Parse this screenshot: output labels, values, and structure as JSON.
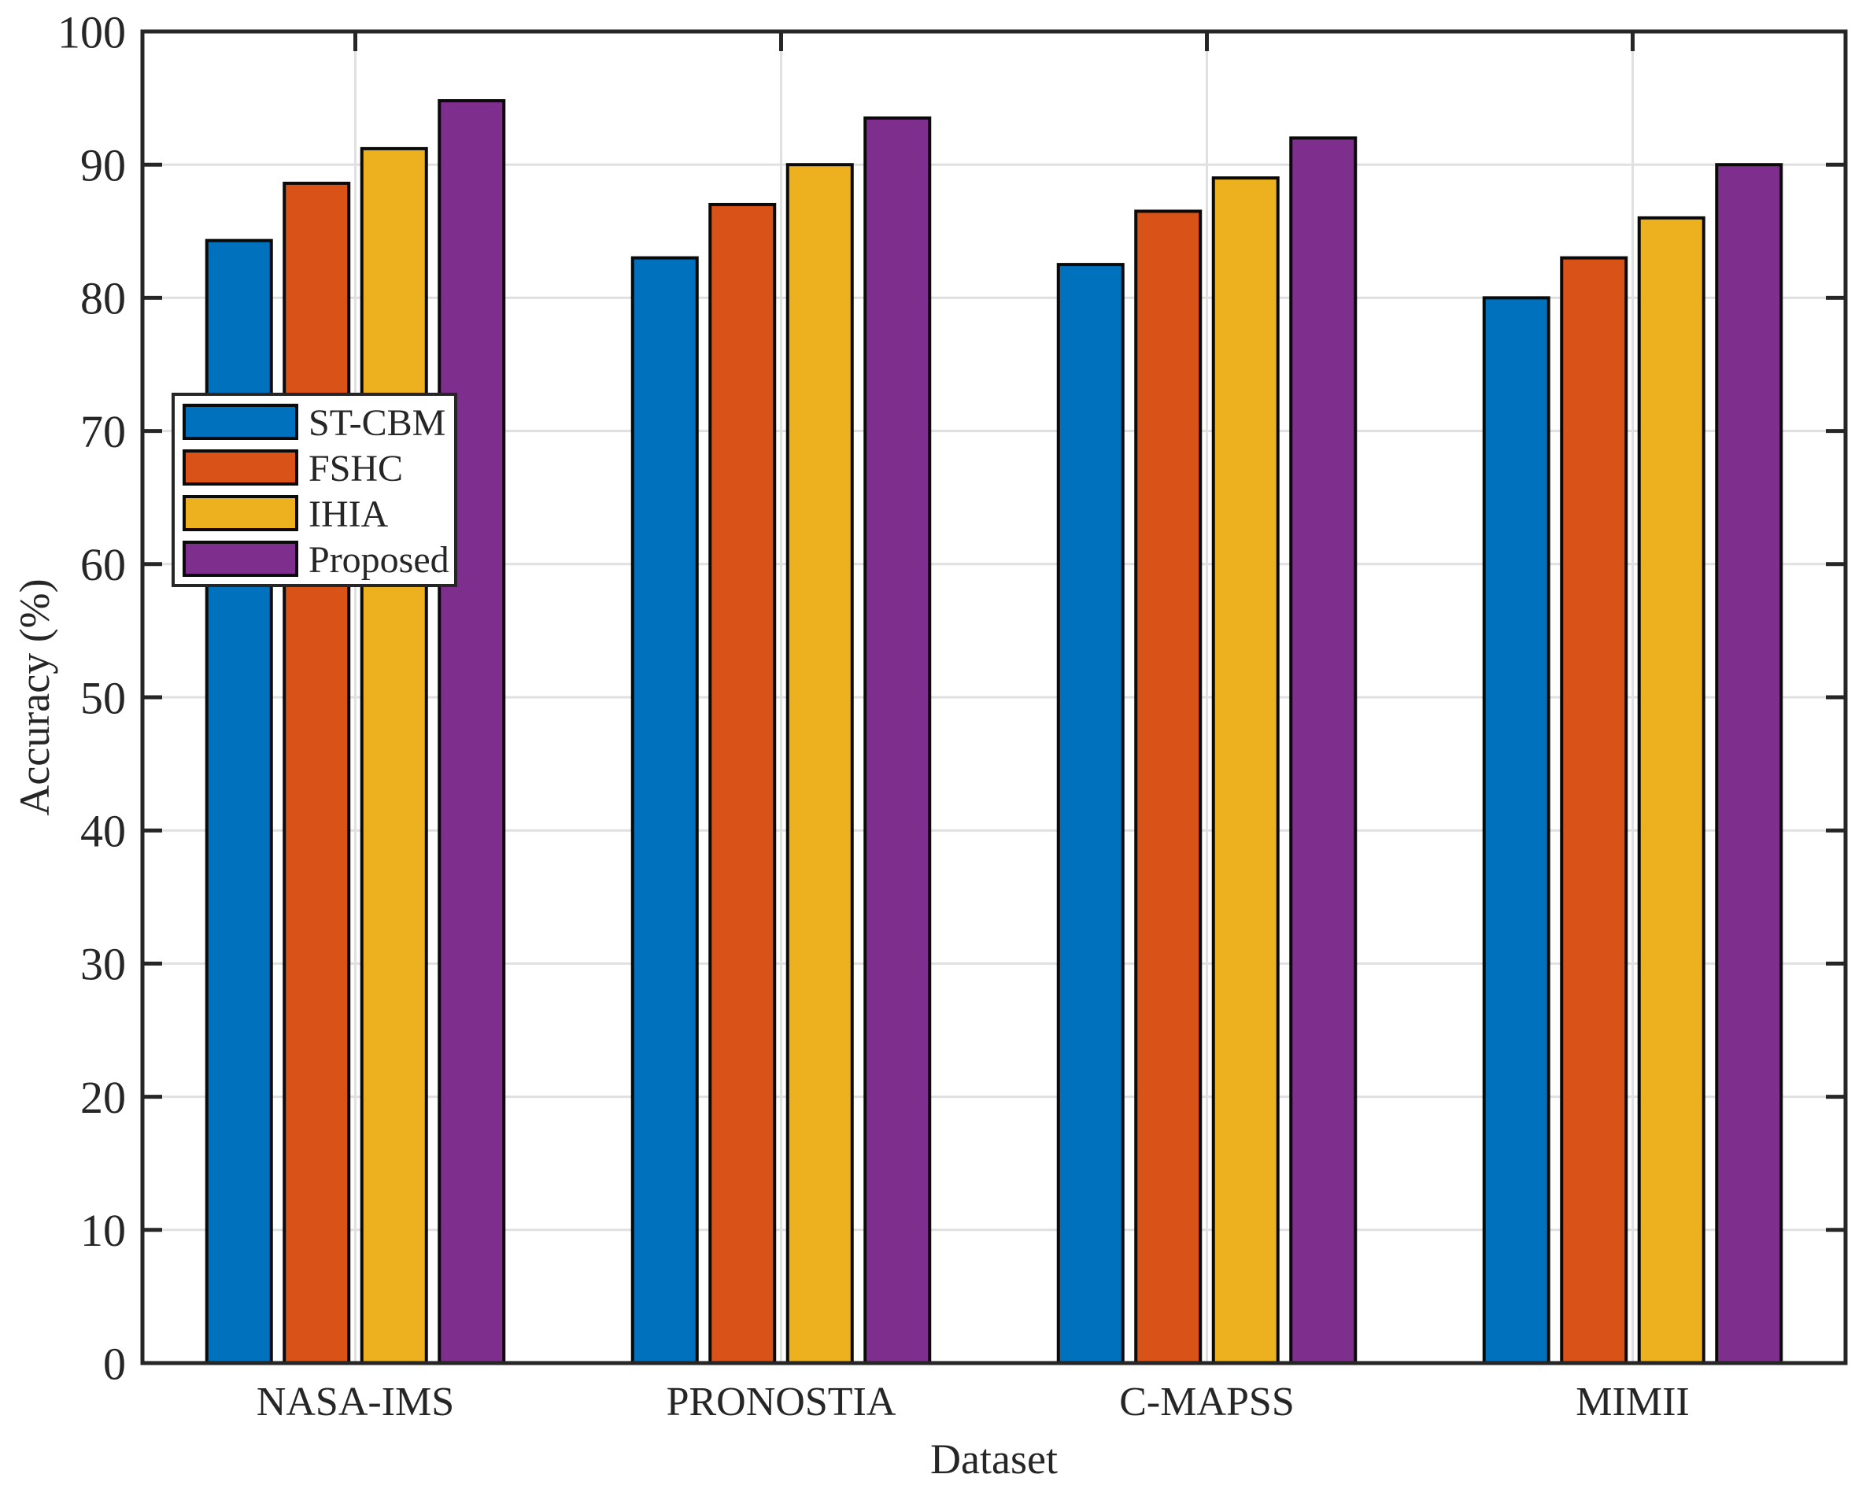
{
  "chart_data": {
    "type": "bar",
    "title": "",
    "xlabel": "Dataset",
    "ylabel": "Accuracy (%)",
    "categories": [
      "NASA-IMS",
      "PRONOSTIA",
      "C-MAPSS",
      "MIMII"
    ],
    "series": [
      {
        "name": "ST-CBM",
        "color": "#0072BD",
        "values": [
          84.3,
          83.0,
          82.5,
          80.0
        ]
      },
      {
        "name": "FSHC",
        "color": "#D95319",
        "values": [
          88.6,
          87.0,
          86.5,
          83.0
        ]
      },
      {
        "name": "IHIA",
        "color": "#EDB120",
        "values": [
          91.2,
          90.0,
          89.0,
          86.0
        ]
      },
      {
        "name": "Proposed",
        "color": "#7E2F8E",
        "values": [
          94.8,
          93.5,
          92.0,
          90.0
        ]
      }
    ],
    "ylim": [
      0,
      100
    ],
    "yticks": [
      0,
      10,
      20,
      30,
      40,
      50,
      60,
      70,
      80,
      90,
      100
    ],
    "grid": "both",
    "legend": {
      "position": "upper-left-inside",
      "entries": [
        "ST-CBM",
        "FSHC",
        "IHIA",
        "Proposed"
      ]
    },
    "colors": {
      "axis": "#262626",
      "grid": "#E0E0E0",
      "bar_edge": "#0A0A0A",
      "background": "#FFFFFF"
    }
  }
}
